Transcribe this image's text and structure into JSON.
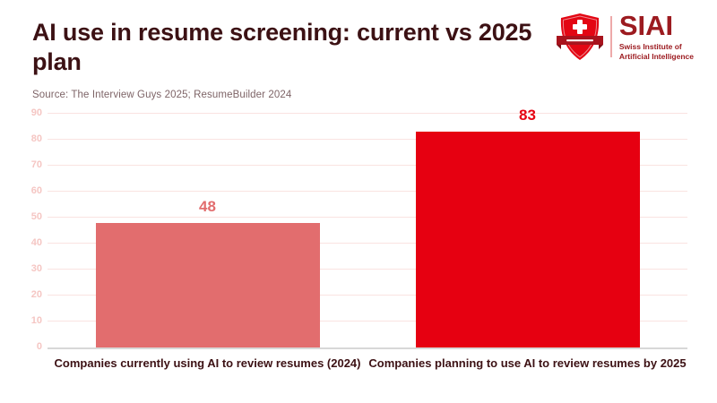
{
  "header": {
    "title": "AI use in resume screening: current vs 2025 plan",
    "source": "Source: The Interview Guys 2025; ResumeBuilder 2024"
  },
  "logo": {
    "name": "SIAI",
    "subtitle_lines": [
      "Swiss Institute of",
      "Artificial Intelligence"
    ],
    "icon": "swiss-shield-icon",
    "colors": {
      "shield_red": "#e30613",
      "ribbon_dark_red": "#a8131d",
      "text_dark_red": "#9c1b20"
    }
  },
  "chart_data": {
    "type": "bar",
    "title": "AI use in resume screening: current vs 2025 plan",
    "categories": [
      "Companies currently using AI to review resumes (2024)",
      "Companies planning to use AI to review resumes by 2025"
    ],
    "values": [
      48,
      83
    ],
    "bar_colors": [
      "#e26d6e",
      "#e60011"
    ],
    "value_label_colors": [
      "#e26d6e",
      "#e60011"
    ],
    "xlabel": "",
    "ylabel": "",
    "ylim": [
      0,
      90
    ],
    "yticks": [
      0,
      10,
      20,
      30,
      40,
      50,
      60,
      70,
      80,
      90
    ],
    "grid": true,
    "legend": false,
    "gridline_color": "#fae3e1",
    "axis_line_color": "#d8d8d8",
    "tick_label_color": "#f5c6c3"
  }
}
